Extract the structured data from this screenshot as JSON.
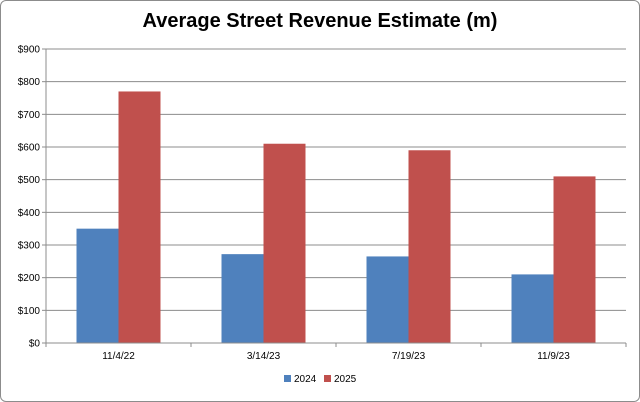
{
  "chart_data": {
    "type": "bar",
    "title": "Average Street Revenue Estimate (m)",
    "xlabel": "",
    "ylabel": "",
    "categories": [
      "11/4/22",
      "3/14/23",
      "7/19/23",
      "11/9/23"
    ],
    "series": [
      {
        "name": "2024",
        "color": "#4f81bd",
        "values": [
          350,
          272,
          265,
          210
        ]
      },
      {
        "name": "2025",
        "color": "#c0504d",
        "values": [
          770,
          610,
          590,
          510
        ]
      }
    ],
    "ylim": [
      0,
      900
    ],
    "yticks": [
      "$0",
      "$100",
      "$200",
      "$300",
      "$400",
      "$500",
      "$600",
      "$700",
      "$800",
      "$900"
    ],
    "grid": true,
    "legend_position": "bottom"
  }
}
